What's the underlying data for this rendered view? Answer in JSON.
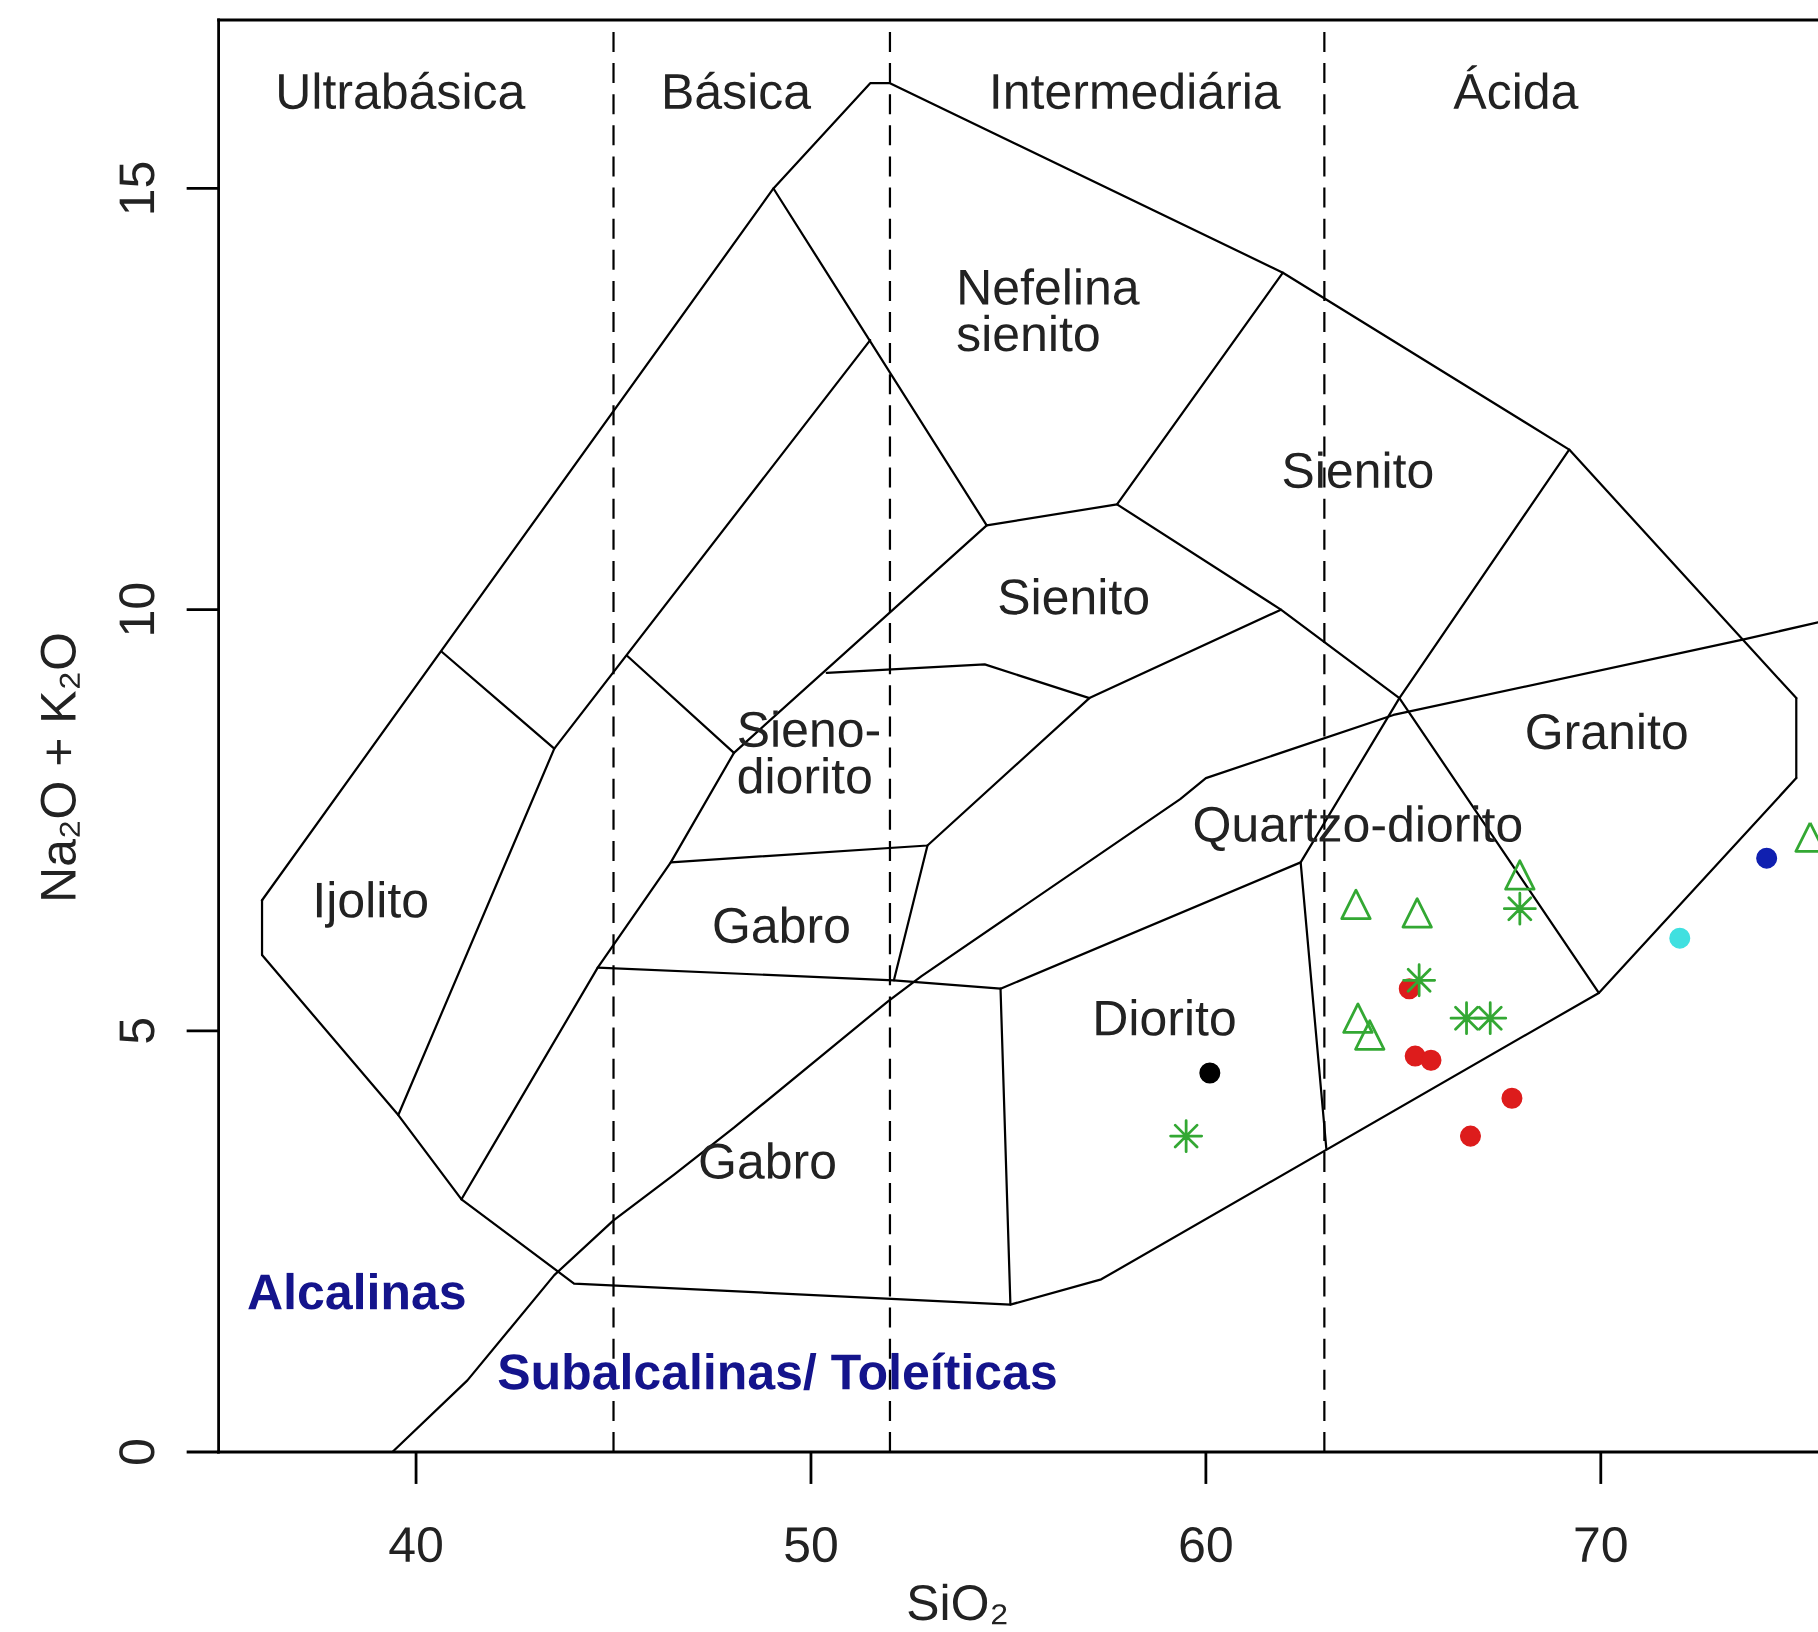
{
  "chart_data": {
    "type": "scatter",
    "xlabel": "SiO₂",
    "ylabel": "Na₂O + K₂O",
    "xlim": [
      35,
      75.5
    ],
    "ylim": [
      0,
      17
    ],
    "xticks": [
      40,
      50,
      60,
      70
    ],
    "yticks": [
      0,
      5,
      10,
      15
    ],
    "ref_lines": [
      {
        "axis": "x",
        "value": 45,
        "color": "#000000",
        "line_style": "dashed"
      },
      {
        "axis": "x",
        "value": 52,
        "color": "#000000",
        "line_style": "dashed"
      },
      {
        "axis": "x",
        "value": 63,
        "color": "#000000",
        "line_style": "dashed"
      }
    ],
    "annotations": [
      "Ultrabásica",
      "Básica",
      "Intermediária",
      "Ácida",
      "Nefelina\nsienito",
      "Sienito",
      "Sienito",
      "Sieno-\ndiorito",
      "Ijolito",
      "Gabro",
      "Granito",
      "Quartzo-diorito",
      "Diorito",
      "Gabro",
      "Alcalinas",
      "Subalcalinas/ Toleíticas"
    ],
    "series": [
      {
        "type": "line",
        "color": "#000000",
        "marker": "none",
        "line_style": "solid",
        "x": [
          36.1,
          49.05,
          51.5,
          52.0,
          61.95,
          69.2,
          74.95
        ],
        "values": [
          6.55,
          15.0,
          16.25,
          16.25,
          14.0,
          11.9,
          8.95
        ]
      },
      {
        "type": "line",
        "color": "#000000",
        "marker": "none",
        "line_style": "solid",
        "x": [
          74.95,
          74.95
        ],
        "values": [
          8.95,
          8.0
        ]
      },
      {
        "type": "line",
        "color": "#000000",
        "marker": "none",
        "line_style": "solid",
        "x": [
          36.1,
          39.55,
          41.15,
          44.0,
          55.05,
          57.35,
          69.95,
          74.95
        ],
        "values": [
          5.9,
          4.0,
          3.0,
          2.0,
          1.75,
          2.05,
          5.45,
          8.0
        ]
      },
      {
        "type": "line",
        "color": "#000000",
        "marker": "none",
        "line_style": "solid",
        "x": [
          36.1,
          36.1
        ],
        "values": [
          5.9,
          6.55
        ]
      },
      {
        "type": "line",
        "color": "#000000",
        "marker": "none",
        "line_style": "solid",
        "x": [
          40.65,
          43.5,
          51.5
        ],
        "values": [
          9.5,
          8.35,
          13.2
        ]
      },
      {
        "type": "line",
        "color": "#000000",
        "marker": "none",
        "line_style": "solid",
        "x": [
          39.55,
          43.5
        ],
        "values": [
          4.0,
          8.35
        ]
      },
      {
        "type": "line",
        "color": "#000000",
        "marker": "none",
        "line_style": "solid",
        "x": [
          49.05,
          54.45,
          57.75,
          61.95
        ],
        "values": [
          15.0,
          11.0,
          11.25,
          14.0
        ]
      },
      {
        "type": "line",
        "color": "#000000",
        "marker": "none",
        "line_style": "solid",
        "x": [
          45.35,
          48.05,
          54.45
        ],
        "values": [
          9.45,
          8.3,
          11.0
        ]
      },
      {
        "type": "line",
        "color": "#000000",
        "marker": "none",
        "line_style": "solid",
        "x": [
          41.15,
          44.6,
          46.45,
          48.05
        ],
        "values": [
          3.0,
          5.75,
          7.0,
          8.3
        ]
      },
      {
        "type": "line",
        "color": "#000000",
        "marker": "none",
        "line_style": "solid",
        "x": [
          50.4,
          54.4,
          57.05,
          61.9
        ],
        "values": [
          9.25,
          9.35,
          8.95,
          10.0
        ]
      },
      {
        "type": "line",
        "color": "#000000",
        "marker": "none",
        "line_style": "solid",
        "x": [
          57.75,
          61.9,
          64.9,
          69.95
        ],
        "values": [
          11.25,
          10.0,
          8.95,
          5.45
        ]
      },
      {
        "type": "line",
        "color": "#000000",
        "marker": "none",
        "line_style": "solid",
        "x": [
          46.45,
          52.95,
          57.05
        ],
        "values": [
          7.0,
          7.2,
          8.95
        ]
      },
      {
        "type": "line",
        "color": "#000000",
        "marker": "none",
        "line_style": "solid",
        "x": [
          52.1,
          52.95
        ],
        "values": [
          5.6,
          7.2
        ]
      },
      {
        "type": "line",
        "color": "#000000",
        "marker": "none",
        "line_style": "solid",
        "x": [
          44.6,
          52.1,
          54.8,
          62.4,
          64.9,
          69.2
        ],
        "values": [
          5.75,
          5.6,
          5.5,
          7.0,
          8.95,
          11.9
        ]
      },
      {
        "type": "line",
        "color": "#000000",
        "marker": "none",
        "line_style": "solid",
        "x": [
          54.8,
          55.05
        ],
        "values": [
          5.5,
          1.75
        ]
      },
      {
        "type": "line",
        "color": "#000000",
        "marker": "none",
        "line_style": "solid",
        "x": [
          62.4,
          63.05
        ],
        "values": [
          7.0,
          3.6
        ]
      },
      {
        "type": "line",
        "color": "#000000",
        "marker": "none",
        "line_style": "solid",
        "x": [
          39.4,
          41.3,
          43.5,
          45.0,
          46.55,
          48.05,
          51.95,
          52.8,
          59.35,
          60.0,
          64.75,
          73.65,
          75.5
        ],
        "values": [
          0,
          0.85,
          2.1,
          2.75,
          3.3,
          3.85,
          5.35,
          5.65,
          7.75,
          8.0,
          8.75,
          9.65,
          9.85
        ]
      },
      {
        "color": "#000000",
        "marker": "circle",
        "x": [
          60.1
        ],
        "values": [
          4.5
        ]
      },
      {
        "color": "#dd1c1c",
        "marker": "circle",
        "x": [
          65.15,
          65.3,
          65.7,
          66.7,
          67.75
        ],
        "values": [
          5.5,
          4.7,
          4.65,
          3.75,
          4.2
        ]
      },
      {
        "color": "#1020b0",
        "marker": "circle",
        "x": [
          74.2
        ],
        "values": [
          7.05
        ]
      },
      {
        "color": "#40e0e0",
        "marker": "circle",
        "x": [
          72.0
        ],
        "values": [
          6.1
        ]
      },
      {
        "color": "#33a833",
        "marker": "triangle",
        "x": [
          63.8,
          65.35,
          67.95,
          63.85,
          64.15,
          75.3
        ],
        "values": [
          6.5,
          6.4,
          6.85,
          5.15,
          4.95,
          7.3
        ]
      },
      {
        "color": "#33a833",
        "marker": "star",
        "x": [
          59.5,
          65.4,
          67.95,
          66.6,
          67.2
        ],
        "values": [
          3.75,
          5.6,
          6.45,
          5.15,
          5.15
        ]
      }
    ]
  }
}
